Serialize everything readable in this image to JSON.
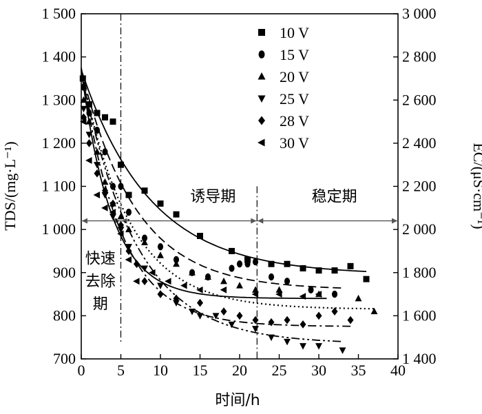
{
  "chart_data": {
    "type": "scatter",
    "xlabel": "时间/h",
    "ylabel": "TDS/(mg·L⁻¹)",
    "y2label": "EC/(μS·cm⁻¹)",
    "xlim": [
      0,
      40
    ],
    "ylim": [
      700,
      1500
    ],
    "y2lim": [
      1400,
      3000
    ],
    "x_ticks": [
      "0",
      "5",
      "10",
      "15",
      "20",
      "25",
      "30",
      "35",
      "40"
    ],
    "y_ticks": [
      "700",
      "800",
      "900",
      "1 000",
      "1 100",
      "1 200",
      "1 300",
      "1 400",
      "1 500"
    ],
    "y2_ticks": [
      "1 400",
      "1 600",
      "1 800",
      "2 000",
      "2 200",
      "2 400",
      "2 600",
      "2 800",
      "3 000"
    ],
    "grid": false,
    "legend_position": "top-right",
    "annotations": {
      "phase1": [
        "快速",
        "去除",
        "期"
      ],
      "phase2": "诱导期",
      "phase3": "稳定期",
      "phase_boundaries_x": [
        5,
        22.2
      ],
      "phase_arrow_y": 1020
    },
    "series": [
      {
        "name": "10 V",
        "marker": "square",
        "x": [
          0.2,
          1,
          2,
          3,
          4,
          5,
          6,
          8,
          10,
          12,
          15,
          19,
          21,
          24,
          26,
          28,
          30,
          32,
          34,
          36
        ],
        "y": [
          1350,
          1290,
          1270,
          1260,
          1250,
          1150,
          1080,
          1090,
          1060,
          1035,
          985,
          950,
          930,
          920,
          920,
          910,
          905,
          905,
          915,
          885
        ],
        "fit": {
          "a": 895,
          "b": 475,
          "k": 0.115,
          "x": [
            0,
            36
          ],
          "dash": ""
        }
      },
      {
        "name": "15 V",
        "marker": "circle",
        "x": [
          0.3,
          1,
          2,
          3,
          4,
          5,
          6,
          8,
          10,
          12,
          14,
          16,
          19,
          20,
          21,
          22,
          24,
          26,
          29,
          32
        ],
        "y": [
          1330,
          1270,
          1230,
          1180,
          1100,
          1100,
          1040,
          980,
          960,
          930,
          900,
          890,
          910,
          920,
          920,
          925,
          890,
          880,
          860,
          850
        ],
        "fit": {
          "a": 860,
          "b": 510,
          "k": 0.145,
          "x": [
            0,
            33
          ],
          "dash": "12 6"
        }
      },
      {
        "name": "20 V",
        "marker": "triangle-up",
        "x": [
          0.3,
          1,
          2,
          3,
          4,
          5,
          6,
          8,
          10,
          12,
          14,
          16,
          18,
          20,
          22,
          25,
          30,
          35,
          37
        ],
        "y": [
          1300,
          1250,
          1180,
          1110,
          1060,
          1030,
          1000,
          970,
          940,
          920,
          900,
          890,
          880,
          870,
          860,
          860,
          850,
          840,
          810
        ],
        "fit": {
          "a": 815,
          "b": 555,
          "k": 0.165,
          "x": [
            0,
            37
          ],
          "dash": "2 4"
        }
      },
      {
        "name": "25 V",
        "marker": "triangle-down",
        "x": [
          0.3,
          1,
          2,
          3,
          4,
          5,
          6,
          8,
          10,
          12,
          14,
          15,
          17,
          19,
          22,
          24,
          26,
          28,
          30,
          33
        ],
        "y": [
          1280,
          1220,
          1150,
          1080,
          1030,
          1000,
          960,
          910,
          870,
          830,
          810,
          800,
          800,
          780,
          770,
          750,
          740,
          730,
          730,
          720
        ],
        "fit": {
          "a": 735,
          "b": 630,
          "k": 0.145,
          "x": [
            0,
            33
          ],
          "dash": "12 4 3 4 3 4"
        }
      },
      {
        "name": "28 V",
        "marker": "diamond",
        "x": [
          0.3,
          1,
          2,
          3,
          4,
          5,
          6,
          7,
          8,
          10,
          12,
          15,
          18,
          20,
          22,
          24,
          26,
          28,
          30,
          32,
          34
        ],
        "y": [
          1260,
          1200,
          1130,
          1090,
          1060,
          1010,
          950,
          920,
          880,
          850,
          840,
          830,
          810,
          800,
          790,
          785,
          790,
          780,
          800,
          810,
          790
        ],
        "fit": {
          "a": 775,
          "b": 600,
          "k": 0.2,
          "x": [
            0,
            34
          ],
          "dash": "12 5 3 5"
        }
      },
      {
        "name": "30 V",
        "marker": "triangle-left",
        "x": [
          0.3,
          1,
          2,
          3,
          4,
          5,
          6,
          7,
          9,
          11,
          13,
          15,
          18,
          22,
          25,
          28,
          30
        ],
        "y": [
          1250,
          1160,
          1080,
          1050,
          1040,
          990,
          930,
          880,
          900,
          880,
          870,
          860,
          860,
          850,
          850,
          845,
          850
        ],
        "fit": {
          "a": 840,
          "b": 530,
          "k": 0.26,
          "x": [
            0,
            31
          ],
          "dash": ""
        }
      }
    ]
  }
}
